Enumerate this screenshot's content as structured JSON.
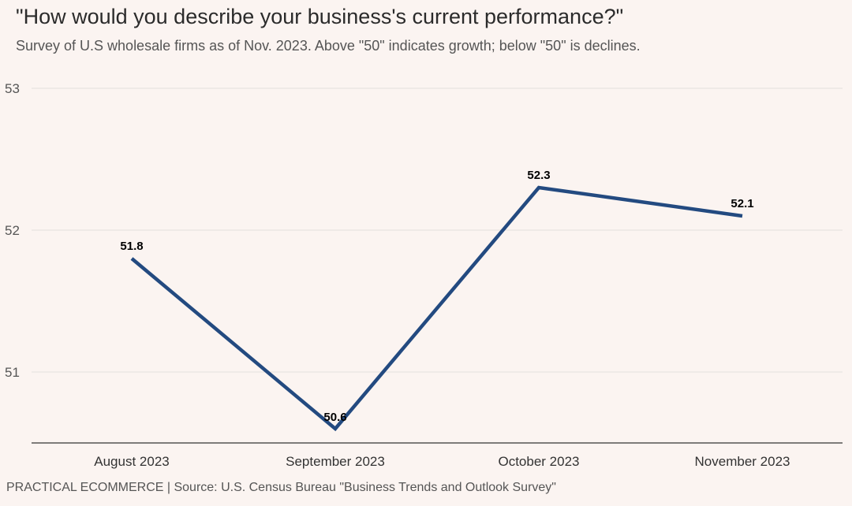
{
  "title": "\"How would you describe your business's current performance?\"",
  "subtitle": "Survey of U.S wholesale firms as of Nov. 2023.  Above \"50\" indicates growth; below \"50\" is declines.",
  "source": "PRACTICAL ECOMMERCE | Source: U.S. Census Bureau \"Business Trends and Outlook Survey\"",
  "chart_data": {
    "type": "line",
    "title": "\"How would you describe your business's current performance?\"",
    "subtitle": "Survey of U.S wholesale firms as of Nov. 2023.  Above \"50\" indicates growth; below \"50\" is declines.",
    "categories": [
      "August 2023",
      "September 2023",
      "October 2023",
      "November 2023"
    ],
    "series": [
      {
        "values": [
          51.8,
          50.6,
          52.3,
          52.1
        ],
        "color": "#234a80"
      }
    ],
    "data_labels": [
      "51.8",
      "50.6",
      "52.3",
      "52.1"
    ],
    "yticks": [
      "51",
      "52",
      "53"
    ],
    "ylim": [
      50.5,
      53
    ],
    "grid": true,
    "legend": "none"
  }
}
